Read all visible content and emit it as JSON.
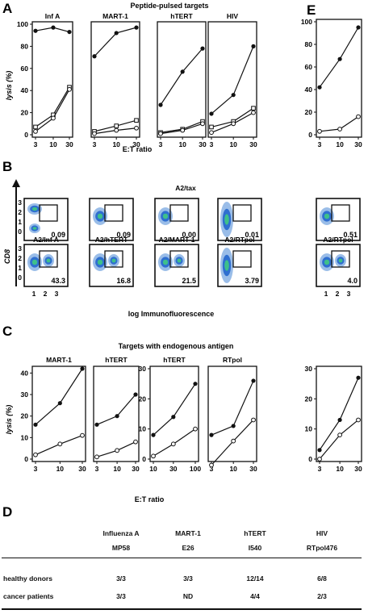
{
  "panels": {
    "A": {
      "letter": "A",
      "title": "Peptide-pulsed targets",
      "ylabel": "lysis (%)",
      "xlabel": "E:T ratio",
      "subtitles": [
        "Inf A",
        "MART-1",
        "hTERT",
        "HIV"
      ],
      "yticks": [
        "100",
        "80",
        "60",
        "40",
        "20",
        "0"
      ],
      "xticks": [
        "3",
        "10",
        "30"
      ]
    },
    "B": {
      "letter": "B",
      "top_label": "A2/tax",
      "row2_labels": [
        "A2/Inf A",
        "A2/hTERT",
        "A2/MART-1",
        "A2/RTpol"
      ],
      "row1_values": [
        "0.09",
        "0.09",
        "0.00",
        "0.01"
      ],
      "row2_values": [
        "43.3",
        "16.8",
        "21.5",
        "3.79"
      ],
      "ylabel": "CD8",
      "xlabel": "log Immunofluorescence",
      "yticks": [
        "3",
        "2",
        "1",
        "0"
      ],
      "xticks": [
        "1",
        "2",
        "3"
      ]
    },
    "C": {
      "letter": "C",
      "title": "Targets with endogenous antigen",
      "ylabel": "lysis (%)",
      "xlabel": "E:T ratio",
      "subtitles": [
        "MART-1",
        "hTERT",
        "hTERT",
        "RTpol"
      ],
      "yticks_left": [
        "40",
        "30",
        "20",
        "10",
        "0"
      ],
      "yticks_third": [
        "30",
        "20",
        "10",
        "0"
      ],
      "xticks_default": [
        "3",
        "10",
        "30"
      ],
      "xticks_third": [
        "10",
        "30",
        "100"
      ]
    },
    "D": {
      "letter": "D",
      "headers": [
        [
          "Influenza A",
          "MP58"
        ],
        [
          "MART-1",
          "E26"
        ],
        [
          "hTERT",
          "I540"
        ],
        [
          "HIV",
          "RTpol476"
        ]
      ],
      "rows": [
        {
          "label": "healthy donors",
          "values": [
            "3/3",
            "3/3",
            "12/14",
            "6/8"
          ]
        },
        {
          "label": "cancer patients",
          "values": [
            "3/3",
            "ND",
            "4/4",
            "2/3"
          ]
        }
      ]
    },
    "E": {
      "letter": "E",
      "flow_label": "A2/RTpol",
      "flow_values": [
        "0.51",
        "4.0"
      ],
      "a_yticks": [
        "100",
        "80",
        "60",
        "40",
        "20",
        "0"
      ],
      "c_yticks": [
        "30",
        "20",
        "10",
        "0"
      ],
      "xticks": [
        "3",
        "10",
        "30"
      ]
    }
  },
  "chart_data": [
    {
      "type": "line",
      "panel": "A",
      "x": [
        3,
        10,
        30
      ],
      "ylim": [
        0,
        100
      ],
      "subplots": [
        {
          "title": "Inf A",
          "series": [
            {
              "values": [
                94,
                97,
                93
              ]
            },
            {
              "values": [
                7,
                18,
                43
              ]
            },
            {
              "values": [
                3,
                15,
                41
              ]
            }
          ]
        },
        {
          "title": "MART-1",
          "series": [
            {
              "values": [
                71,
                92,
                97
              ]
            },
            {
              "values": [
                3,
                8,
                13
              ]
            },
            {
              "values": [
                1,
                4,
                6
              ]
            }
          ]
        },
        {
          "title": "hTERT",
          "series": [
            {
              "values": [
                27,
                57,
                78
              ]
            },
            {
              "values": [
                2,
                5,
                12
              ]
            },
            {
              "values": [
                1,
                4,
                10
              ]
            }
          ]
        },
        {
          "title": "HIV",
          "series": [
            {
              "values": [
                19,
                36,
                80
              ]
            },
            {
              "values": [
                7,
                12,
                24
              ]
            },
            {
              "values": [
                2,
                10,
                20
              ]
            }
          ]
        }
      ],
      "E_series": [
        {
          "values": [
            42,
            67,
            95
          ]
        },
        {
          "values": [
            3,
            5,
            16
          ]
        }
      ]
    },
    {
      "type": "line",
      "panel": "C",
      "subplots": [
        {
          "title": "MART-1",
          "x": [
            3,
            10,
            30
          ],
          "ylim": [
            0,
            42
          ],
          "series": [
            {
              "values": [
                16,
                26,
                42
              ]
            },
            {
              "values": [
                2,
                7,
                11
              ]
            }
          ]
        },
        {
          "title": "hTERT",
          "x": [
            3,
            10,
            30
          ],
          "ylim": [
            0,
            42
          ],
          "series": [
            {
              "values": [
                16,
                20,
                30
              ]
            },
            {
              "values": [
                1,
                4,
                8
              ]
            }
          ]
        },
        {
          "title": "hTERT",
          "x": [
            10,
            30,
            100
          ],
          "ylim": [
            0,
            30
          ],
          "series": [
            {
              "values": [
                8,
                14,
                25
              ]
            },
            {
              "values": [
                1,
                5,
                10
              ]
            }
          ]
        },
        {
          "title": "RTpol",
          "x": [
            3,
            10,
            30
          ],
          "ylim": [
            0,
            30
          ],
          "series": [
            {
              "values": [
                8,
                11,
                26
              ]
            },
            {
              "values": [
                -2,
                6,
                13
              ]
            }
          ]
        }
      ],
      "E_series": {
        "x": [
          3,
          10,
          30
        ],
        "ylim": [
          0,
          30
        ],
        "series": [
          {
            "values": [
              3,
              13,
              27
            ]
          },
          {
            "values": [
              0,
              8,
              13
            ]
          }
        ]
      }
    }
  ]
}
